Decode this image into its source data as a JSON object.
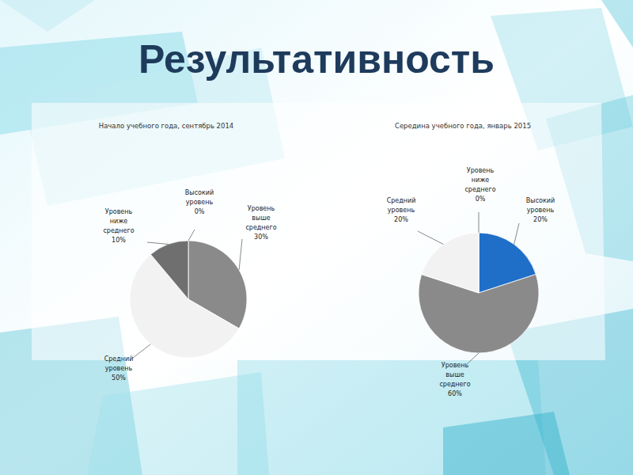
{
  "slide": {
    "title": "Результативность"
  },
  "chart_data": [
    {
      "type": "pie",
      "title": "Начало учебного года, сентябрь 2014",
      "categories": [
        "Высокий уровень",
        "Уровень выше среднего",
        "Средний уровень",
        "Уровень ниже среднего"
      ],
      "values": [
        0,
        30,
        50,
        10
      ],
      "value_labels": [
        "0%",
        "30%",
        "50%",
        "10%"
      ],
      "colors": [
        "#2f6fc4",
        "#8a8a8a",
        "#f2f2f2",
        "#6f6f6f"
      ],
      "data_labels": true
    },
    {
      "type": "pie",
      "title": "Середина учебного года, январь 2015",
      "categories": [
        "Высокий уровень",
        "Уровень выше среднего",
        "Средний уровень",
        "Уровень ниже среднего"
      ],
      "values": [
        20,
        60,
        20,
        0
      ],
      "value_labels": [
        "20%",
        "60%",
        "20%",
        "0%"
      ],
      "colors": [
        "#1f6fc8",
        "#8a8a8a",
        "#f2f2f2",
        "#6f6f6f"
      ],
      "data_labels": true
    }
  ]
}
